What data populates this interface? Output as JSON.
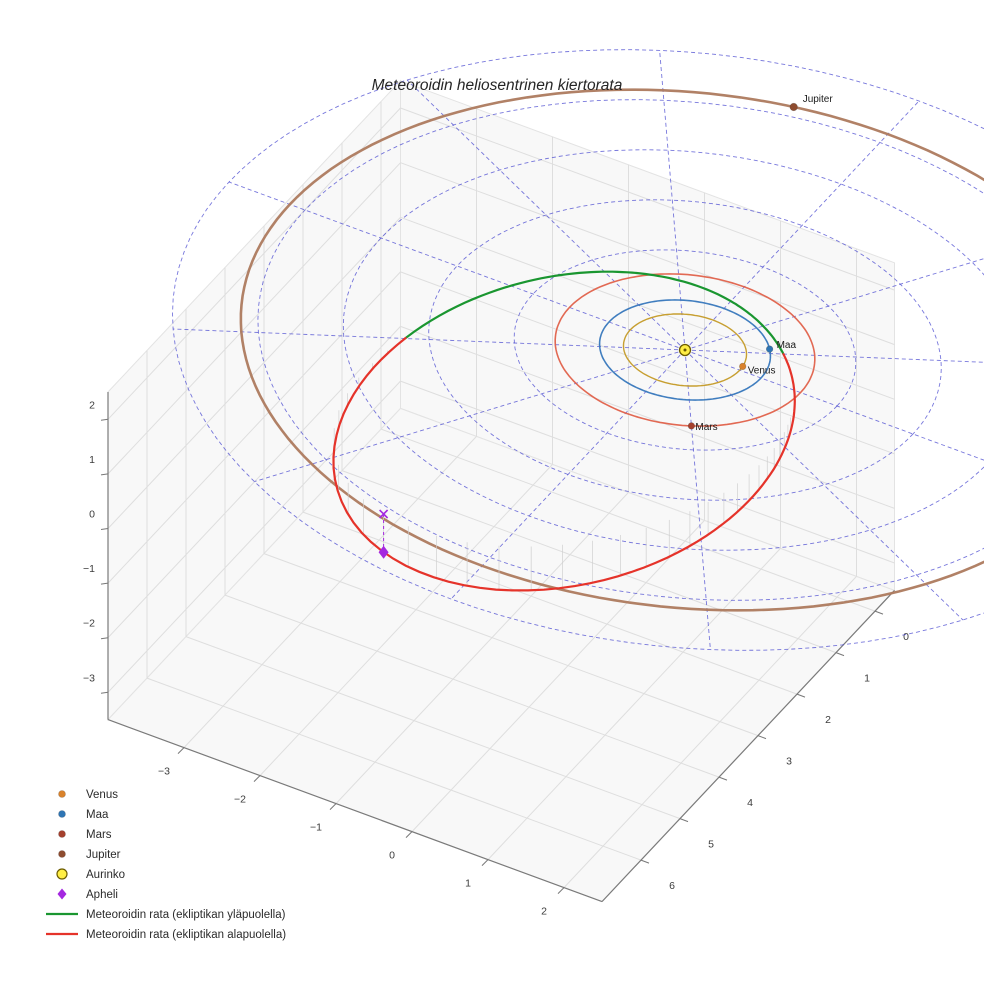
{
  "chart_data": {
    "type": "line",
    "subtype": "3d-orbit-plot",
    "title": "Meteoroidin heliosentrinen kiertorata",
    "axes": {
      "x": {
        "ticks": [
          -3,
          -2,
          -1,
          0,
          1,
          2
        ],
        "range": [
          -4,
          2.5
        ]
      },
      "y": {
        "ticks": [
          0,
          1,
          2,
          3,
          4,
          5,
          6
        ],
        "range": [
          -0.5,
          7
        ]
      },
      "z": {
        "ticks": [
          2,
          1,
          0,
          -1,
          -2,
          -3
        ],
        "range": [
          -3.5,
          2.5
        ]
      }
    },
    "polar_grid": {
      "radii": [
        1,
        2,
        3,
        4,
        5,
        6
      ],
      "spoke_step_deg": 30,
      "color": "#4a4ad0"
    },
    "sun": {
      "label": "Aurinko",
      "position": [
        0,
        0,
        0
      ],
      "color": "#ffee44",
      "edge_color": "#6b5b00"
    },
    "planets": [
      {
        "name": "Venus",
        "orbit_radius_au": 0.72,
        "angle_deg": -7,
        "marker_color": "#d9822b",
        "orbit_color": "#c49a26",
        "orbit_width": 1.4
      },
      {
        "name": "Maa",
        "orbit_radius_au": 1.0,
        "angle_deg": -35,
        "marker_color": "#2e75b4",
        "orbit_color": "#3a7abd",
        "orbit_width": 1.6
      },
      {
        "name": "Mars",
        "orbit_radius_au": 1.52,
        "angle_deg": 60,
        "marker_color": "#a5402d",
        "orbit_color": "#e0614a",
        "orbit_width": 1.6
      },
      {
        "name": "Jupiter",
        "orbit_radius_au": 5.2,
        "angle_deg": -103,
        "marker_color": "#8e4c2f",
        "orbit_color": "#ad7a5e",
        "orbit_width": 2.6
      }
    ],
    "meteoroid": {
      "semi_major_axis_au": 3.1,
      "eccentricity": 0.67,
      "basis_p": [
        0.278,
        -0.951,
        0.135
      ],
      "basis_q": [
        -0.955,
        -0.26,
        0.138
      ],
      "node_nu_deg": [
        -44.4,
        135.6
      ],
      "above_color": "#1a9630",
      "below_color": "#e5332a",
      "above_label": "Meteoroidin rata (ekliptikan yläpuolella)",
      "below_label": "Meteoroidin rata (ekliptikan alapuolella)"
    },
    "aphelion": {
      "label": "Apheli",
      "color": "#a428e0",
      "nu_deg": 180,
      "position_au": [
        -1.44,
        4.93,
        -0.7
      ]
    },
    "legend": [
      {
        "label": "Venus",
        "type": "dot",
        "color": "#d9822b"
      },
      {
        "label": "Maa",
        "type": "dot",
        "color": "#2e75b4"
      },
      {
        "label": "Mars",
        "type": "dot",
        "color": "#a5402d"
      },
      {
        "label": "Jupiter",
        "type": "dot",
        "color": "#8e4c2f"
      },
      {
        "label": "Aurinko",
        "type": "circle",
        "color": "#ffee44",
        "edge": "#6b5b00"
      },
      {
        "label": "Apheli",
        "type": "diamond",
        "color": "#a428e0"
      },
      {
        "label": "Meteoroidin rata (ekliptikan yläpuolella)",
        "type": "line",
        "color": "#1a9630"
      },
      {
        "label": "Meteoroidin rata (ekliptikan alapuolella)",
        "type": "line",
        "color": "#e5332a"
      }
    ]
  }
}
